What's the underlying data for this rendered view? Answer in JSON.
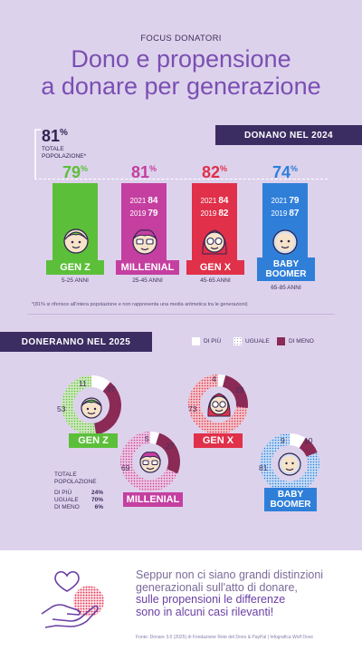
{
  "header": {
    "kicker": "FOCUS DONATORI",
    "title_line1": "Dono e propensione",
    "title_line2": "a donare per generazione"
  },
  "total": {
    "pct": "81",
    "pct_sign": "%",
    "label_line1": "TOTALE",
    "label_line2": "POPOLAZIONE*"
  },
  "section1": {
    "title": "DONANO NEL 2024"
  },
  "generations": [
    {
      "pct": "79",
      "sign": "%",
      "name": "GEN Z",
      "ages": "5-25 ANNI",
      "color": "#5cbf3a",
      "y2021_label": "",
      "y2021": "",
      "y2019_label": "",
      "y2019": ""
    },
    {
      "pct": "81",
      "sign": "%",
      "name": "MILLENIAL",
      "ages": "25-45 ANNI",
      "color": "#c43fa0",
      "y2021_label": "2021",
      "y2021": "84",
      "y2019_label": "2019",
      "y2019": "79"
    },
    {
      "pct": "82",
      "sign": "%",
      "name": "GEN X",
      "ages": "45-65 ANNI",
      "color": "#e0304a",
      "y2021_label": "2021",
      "y2021": "84",
      "y2019_label": "2019",
      "y2019": "82"
    },
    {
      "pct": "74",
      "sign": "%",
      "name": "BABY BOOMER",
      "name_line1": "BABY",
      "name_line2": "BOOMER",
      "ages": "65-85 ANNI",
      "color": "#2f7fd9",
      "y2021_label": "2021",
      "y2021": "79",
      "y2019_label": "2019",
      "y2019": "87"
    }
  ],
  "note": "*(81% si riferisce all'intera popolazione e non rappresenta una media aritmetica tra le generazioni)",
  "section2": {
    "title": "DONERANNO NEL 2025",
    "legend": {
      "more": "DI PIÙ",
      "same": "UGUALE",
      "less": "DI MENO"
    }
  },
  "donuts": [
    {
      "name": "GEN Z",
      "more": 11,
      "same": 53,
      "less": 37
    },
    {
      "name": "MILLENIAL",
      "more": 5,
      "same": 69,
      "less": 27
    },
    {
      "name": "GEN X",
      "more": 4,
      "same": 73,
      "less": 23
    },
    {
      "name": "BABY BOOMER",
      "name_line1": "BABY",
      "name_line2": "BOOMER",
      "more": 9,
      "same": 81,
      "less": 10
    }
  ],
  "total_population": {
    "title_line1": "TOTALE",
    "title_line2": "POPOLAZIONE",
    "rows": [
      {
        "label": "DI PIÙ",
        "value": "24%"
      },
      {
        "label": "UGUALE",
        "value": "70%"
      },
      {
        "label": "DI MENO",
        "value": "6%"
      }
    ]
  },
  "message": {
    "line1": "Seppur non ci siano grandi distinzioni",
    "line2": "generazionali sull'atto di donare,",
    "line3": "sulle propensioni le differenze",
    "line4": "sono in alcuni casi rilevanti!"
  },
  "source": "Fonte: Donare 3.0 (2025) di Fondazione Rete del Dono & PayPal | Infografica Wolf Dove",
  "colors": {
    "more": "#ffffff",
    "same_dots": "#9aa0b0",
    "less": "#8a2a55",
    "purple": "#7a4fb2",
    "dark": "#3b2d62"
  }
}
